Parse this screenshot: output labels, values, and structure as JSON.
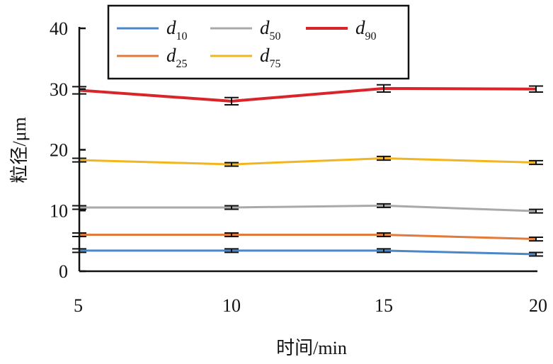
{
  "chart_data": {
    "type": "line",
    "xlabel": "时间/min",
    "ylabel": "粒径/μm",
    "xlim": [
      5,
      20
    ],
    "ylim": [
      0,
      40
    ],
    "x": [
      5,
      10,
      15,
      20
    ],
    "x_ticks": [
      "5",
      "10",
      "15",
      "20"
    ],
    "y_ticks": [
      "0",
      "10",
      "20",
      "30",
      "40"
    ],
    "y_tick_values": [
      0,
      10,
      20,
      30,
      40
    ],
    "grid": false,
    "legend_position": "top-left",
    "error_bars": true,
    "series": [
      {
        "name": "d",
        "sub": "10",
        "color": "#4a86c8",
        "values": [
          3.4,
          3.4,
          3.4,
          2.8
        ],
        "errors": [
          0.15,
          0.1,
          0.2,
          0.2
        ]
      },
      {
        "name": "d",
        "sub": "25",
        "color": "#e07b39",
        "values": [
          6.0,
          6.0,
          6.0,
          5.3
        ],
        "errors": [
          0.2,
          0.1,
          0.2,
          0.3
        ]
      },
      {
        "name": "d",
        "sub": "50",
        "color": "#a9a9a9",
        "values": [
          10.5,
          10.5,
          10.8,
          9.9
        ],
        "errors": [
          0.2,
          0.1,
          0.2,
          0.25
        ]
      },
      {
        "name": "d",
        "sub": "75",
        "color": "#f2b51e",
        "values": [
          18.3,
          17.6,
          18.6,
          17.9
        ],
        "errors": [
          0.3,
          0.2,
          0.3,
          0.3
        ]
      },
      {
        "name": "d",
        "sub": "90",
        "color": "#d9252a",
        "values": [
          29.8,
          28.0,
          30.1,
          30.0
        ],
        "errors": [
          0.6,
          0.6,
          0.6,
          0.5
        ]
      }
    ]
  }
}
